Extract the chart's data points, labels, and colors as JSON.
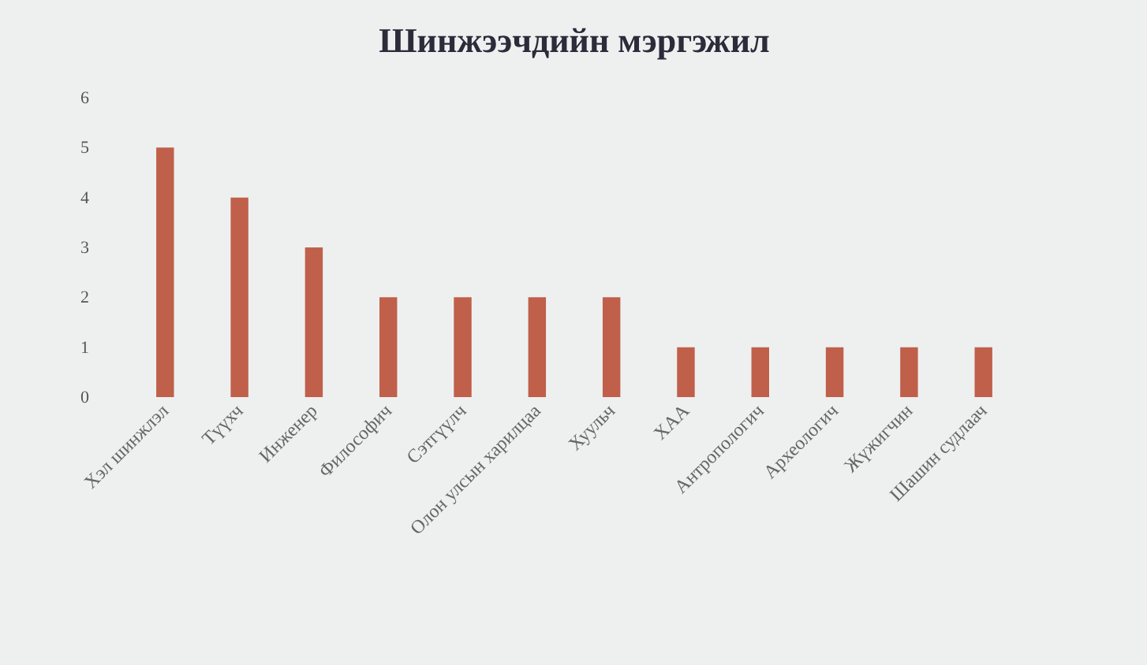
{
  "chart_data": {
    "type": "bar",
    "title": "Шинжээчдийн мэргэжил",
    "categories": [
      "Хэл шинжлэл",
      "Түүхч",
      "Инженер",
      "Философич",
      "Сэтгүүлч",
      "Олон улсын харилцаа",
      "Хуульч",
      "ХАА",
      "Антропологич",
      "Археологич",
      "Жүжигчин",
      "Шашин судлаач"
    ],
    "values": [
      5,
      4,
      3,
      2,
      2,
      2,
      2,
      1,
      1,
      1,
      1,
      1
    ],
    "color": "#c0604a",
    "ylim": [
      0,
      6
    ],
    "yticks": [
      0,
      1,
      2,
      3,
      4,
      5,
      6
    ]
  }
}
